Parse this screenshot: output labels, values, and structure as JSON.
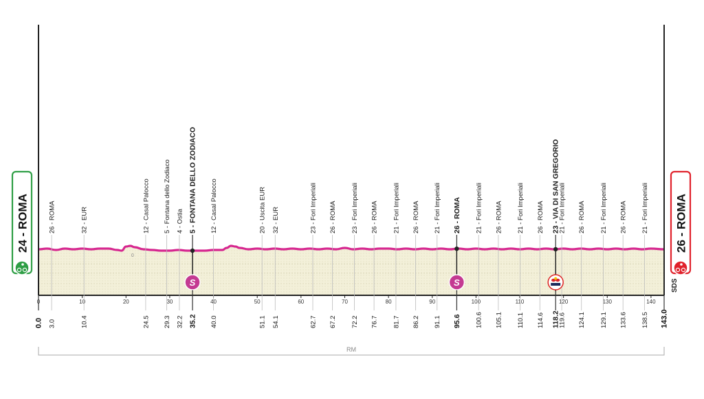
{
  "chart_data": {
    "type": "area",
    "title": "",
    "xlabel": "",
    "ylabel": "",
    "xlim": [
      0,
      143
    ],
    "x_ticks": [
      "0",
      "10",
      "20",
      "30",
      "40",
      "50",
      "60",
      "70",
      "80",
      "90",
      "100",
      "110",
      "120",
      "130",
      "140"
    ],
    "start": {
      "label": "24 - ROMA",
      "km": "0.0"
    },
    "finish": {
      "label": "26 - ROMA",
      "km": "143.0"
    },
    "waypoints": [
      {
        "km": 3.0,
        "km_label": "3.0",
        "label": "26 - ROMA"
      },
      {
        "km": 10.4,
        "km_label": "10.4",
        "label": "32 - EUR"
      },
      {
        "km": 24.5,
        "km_label": "24.5",
        "label": "12 - Casal Palocco"
      },
      {
        "km": 29.3,
        "km_label": "29.3",
        "label": "5 - Fontana dello Zodiaco"
      },
      {
        "km": 32.2,
        "km_label": "32.2",
        "label": "4 - Ostia"
      },
      {
        "km": 35.2,
        "km_label": "35.2",
        "label": "5 - FONTANA DELLO ZODIACO",
        "bold": true,
        "sprint": true
      },
      {
        "km": 40.0,
        "km_label": "40.0",
        "label": "12 - Casal Palocco"
      },
      {
        "km": 51.1,
        "km_label": "51.1",
        "label": "20 - Uscita EUR"
      },
      {
        "km": 54.1,
        "km_label": "54.1",
        "label": "32 - EUR"
      },
      {
        "km": 62.7,
        "km_label": "62.7",
        "label": "23 - Fori Imperiali"
      },
      {
        "km": 67.2,
        "km_label": "67.2",
        "label": "26 - ROMA"
      },
      {
        "km": 72.2,
        "km_label": "72.2",
        "label": "23 - Fori Imperiali"
      },
      {
        "km": 76.7,
        "km_label": "76.7",
        "label": "26 - ROMA"
      },
      {
        "km": 81.7,
        "km_label": "81.7",
        "label": "21 - Fori Imperiali"
      },
      {
        "km": 86.2,
        "km_label": "86.2",
        "label": "26 - ROMA"
      },
      {
        "km": 91.1,
        "km_label": "91.1",
        "label": "21 - Fori Imperiali"
      },
      {
        "km": 95.6,
        "km_label": "95.6",
        "label": "26 - ROMA",
        "bold": true,
        "sprint": true
      },
      {
        "km": 100.6,
        "km_label": "100.6",
        "label": "21 - Fori Imperiali"
      },
      {
        "km": 105.1,
        "km_label": "105.1",
        "label": "26 - ROMA"
      },
      {
        "km": 110.1,
        "km_label": "110.1",
        "label": "21 - Fori Imperiali"
      },
      {
        "km": 114.6,
        "km_label": "114.6",
        "label": "26 - ROMA"
      },
      {
        "km": 118.2,
        "km_label": "118.2",
        "label": "23 - VIA DI SAN GREGORIO",
        "bold": true,
        "bonus": true
      },
      {
        "km": 119.6,
        "km_label": "119.6",
        "label": "21 - Fori Imperiali"
      },
      {
        "km": 124.1,
        "km_label": "124.1",
        "label": "26 - ROMA"
      },
      {
        "km": 129.1,
        "km_label": "129.1",
        "label": "21 - Fori Imperiali"
      },
      {
        "km": 133.6,
        "km_label": "133.6",
        "label": "26 - ROMA"
      },
      {
        "km": 138.5,
        "km_label": "138.5",
        "label": "21 - Fori Imperiali"
      }
    ],
    "profile": {
      "x": [
        0,
        2,
        4,
        6,
        8,
        10,
        12,
        14,
        16,
        18,
        19,
        20,
        21,
        22,
        24,
        26,
        28,
        30,
        32,
        34,
        36,
        38,
        40,
        42,
        43,
        44,
        45,
        46,
        48,
        50,
        52,
        54,
        56,
        58,
        60,
        62,
        64,
        66,
        68,
        70,
        72,
        74,
        76,
        78,
        80,
        82,
        84,
        86,
        88,
        90,
        92,
        94,
        96,
        98,
        100,
        102,
        104,
        106,
        108,
        110,
        112,
        114,
        116,
        118,
        120,
        122,
        124,
        126,
        128,
        130,
        132,
        134,
        136,
        138,
        140,
        143
      ],
      "y": [
        6,
        7,
        5,
        7,
        6,
        7,
        6,
        7,
        7,
        5,
        4,
        10,
        11,
        9,
        6,
        5,
        4,
        4,
        5,
        4,
        4,
        4,
        5,
        5,
        8,
        11,
        10,
        8,
        6,
        7,
        6,
        7,
        6,
        7,
        6,
        7,
        6,
        7,
        6,
        8,
        6,
        7,
        6,
        7,
        7,
        6,
        7,
        6,
        7,
        6,
        7,
        6,
        7,
        6,
        7,
        6,
        7,
        6,
        7,
        6,
        7,
        6,
        7,
        6,
        7,
        6,
        7,
        6,
        7,
        6,
        7,
        6,
        7,
        6,
        7,
        6
      ]
    },
    "ylim": [
      -60,
      40
    ],
    "profile_value_label": {
      "km": 21.5,
      "text": "0"
    },
    "subtitle_circuit": "RM",
    "side_text": "SDS",
    "colors": {
      "profile": "#d6268f",
      "fill": "#f3f0d9",
      "start_green": "#2e9e45",
      "finish_red": "#e0212b",
      "sprint": "#c43a92",
      "axis": "#222222",
      "grid": "#bbbbbb"
    }
  }
}
